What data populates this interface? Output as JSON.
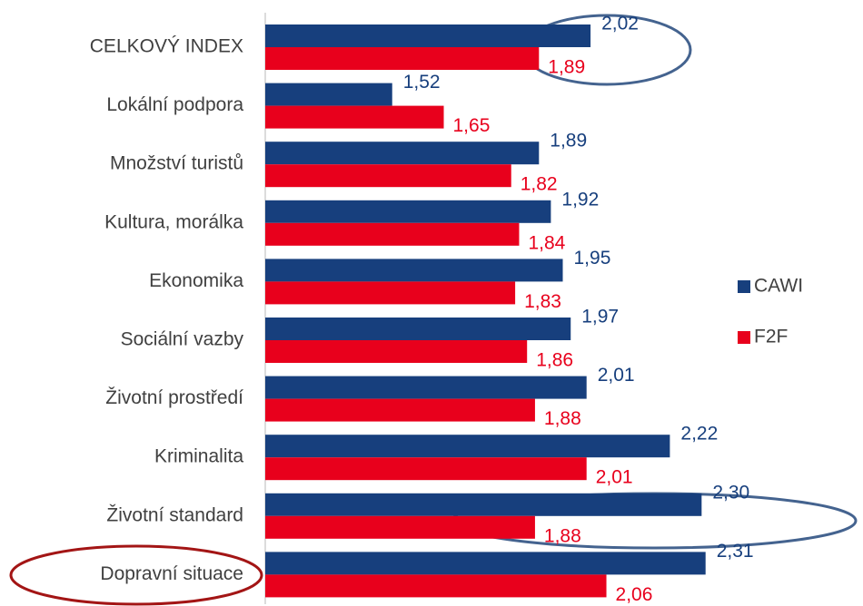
{
  "chart_data": {
    "type": "bar",
    "orientation": "horizontal",
    "categories": [
      "CELKOVÝ INDEX",
      "Lokální podpora",
      "Množství turistů",
      "Kultura, morálka",
      "Ekonomika",
      "Sociální vazby",
      "Životní prostředí",
      "Kriminalita",
      "Životní standard",
      "Dopravní situace"
    ],
    "series": [
      {
        "name": "CAWI",
        "color": "#173f7d",
        "values": [
          2.02,
          1.52,
          1.89,
          1.92,
          1.95,
          1.97,
          2.01,
          2.22,
          2.3,
          2.31
        ],
        "value_labels": [
          "2,02",
          "1,52",
          "1,89",
          "1,92",
          "1,95",
          "1,97",
          "2,01",
          "2,22",
          "2,30",
          "2,31"
        ]
      },
      {
        "name": "F2F",
        "color": "#e8001c",
        "values": [
          1.89,
          1.65,
          1.82,
          1.84,
          1.83,
          1.86,
          1.88,
          2.01,
          1.88,
          2.06
        ],
        "value_labels": [
          "1,89",
          "1,65",
          "1,82",
          "1,84",
          "1,83",
          "1,86",
          "1,88",
          "2,01",
          "1,88",
          "2,06"
        ]
      }
    ],
    "xlim": [
      1.2,
      2.4
    ],
    "legend": "right"
  }
}
